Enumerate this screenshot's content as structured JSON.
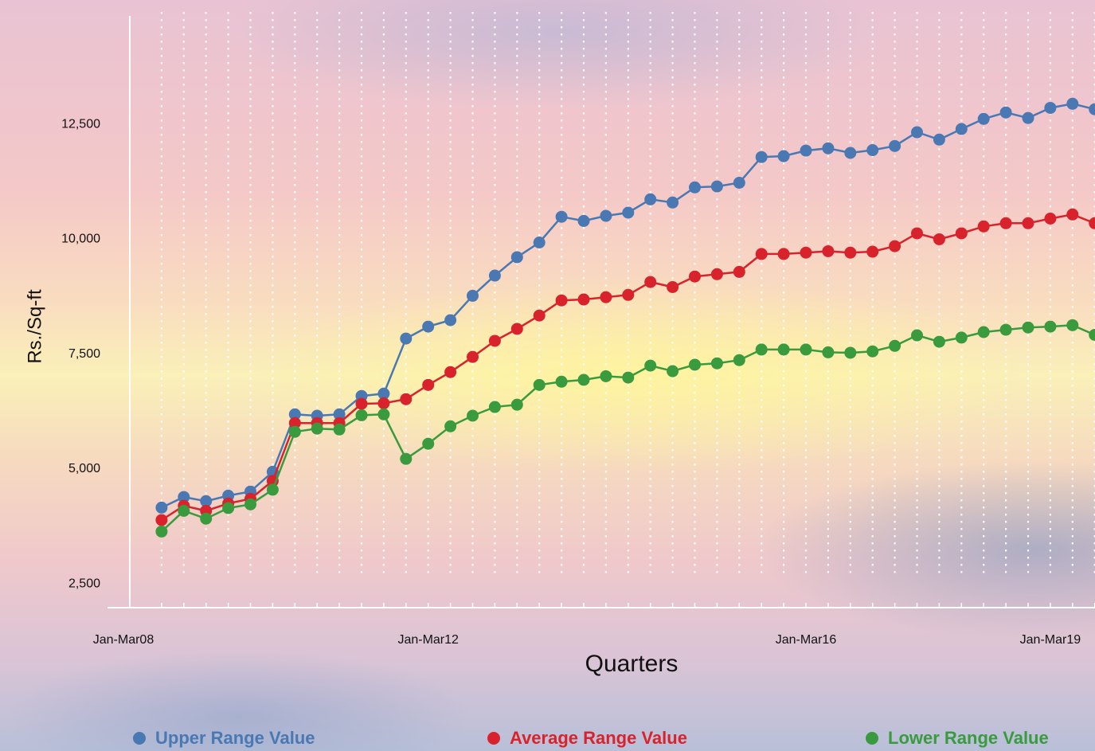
{
  "chart_data": {
    "type": "line",
    "x_label": "Quarters",
    "y_label": "Rs./Sq-ft",
    "categories": [
      "Jan-Mar08",
      null,
      null,
      null,
      null,
      null,
      null,
      null,
      null,
      null,
      null,
      null,
      null,
      "Jan-Mar12",
      null,
      null,
      null,
      null,
      null,
      null,
      null,
      null,
      null,
      null,
      null,
      null,
      null,
      null,
      null,
      null,
      "Jan-Mar16",
      null,
      null,
      null,
      null,
      null,
      null,
      null,
      null,
      null,
      null,
      "Jan-Mar19",
      null,
      null
    ],
    "series": [
      {
        "name": "Upper Range Value",
        "color": "#4a78b3",
        "values": [
          null,
          4160,
          4390,
          4300,
          4420,
          4510,
          4940,
          6190,
          6160,
          6190,
          6590,
          6640,
          7840,
          8100,
          8240,
          8770,
          9210,
          9610,
          9930,
          10490,
          10400,
          10510,
          10580,
          10870,
          10800,
          11130,
          11150,
          11230,
          11790,
          11810,
          11930,
          11980,
          11880,
          11940,
          12030,
          12330,
          12170,
          12400,
          12620,
          12760,
          12640,
          12860,
          12950,
          12830
        ]
      },
      {
        "name": "Average Range Value",
        "color": "#d8232c",
        "values": [
          null,
          3890,
          4200,
          4090,
          4250,
          4350,
          4740,
          6000,
          6000,
          6000,
          6420,
          6430,
          6520,
          6830,
          7110,
          7440,
          7790,
          8050,
          8340,
          8670,
          8690,
          8740,
          8790,
          9070,
          8960,
          9190,
          9240,
          9290,
          9680,
          9680,
          9710,
          9740,
          9710,
          9730,
          9850,
          10130,
          10000,
          10130,
          10280,
          10350,
          10350,
          10450,
          10540,
          10350
        ]
      },
      {
        "name": "Lower Range Value",
        "color": "#3a9a3e",
        "values": [
          null,
          3640,
          4090,
          3920,
          4150,
          4230,
          4550,
          5810,
          5880,
          5860,
          6170,
          6190,
          5220,
          5550,
          5930,
          6160,
          6350,
          6400,
          6830,
          6900,
          6940,
          7020,
          6990,
          7250,
          7130,
          7270,
          7300,
          7370,
          7600,
          7600,
          7600,
          7540,
          7530,
          7560,
          7680,
          7910,
          7770,
          7860,
          7980,
          8030,
          8080,
          8100,
          8130,
          7920
        ]
      }
    ],
    "ylim": [
      2000,
      15000
    ],
    "yticks": [
      {
        "value": 2500,
        "label": "2,500"
      },
      {
        "value": 5000,
        "label": "5,000"
      },
      {
        "value": 7500,
        "label": "7,500"
      },
      {
        "value": 10000,
        "label": "10,000"
      },
      {
        "value": 12500,
        "label": "12,500"
      }
    ],
    "grid": true,
    "legend": "bottom"
  }
}
